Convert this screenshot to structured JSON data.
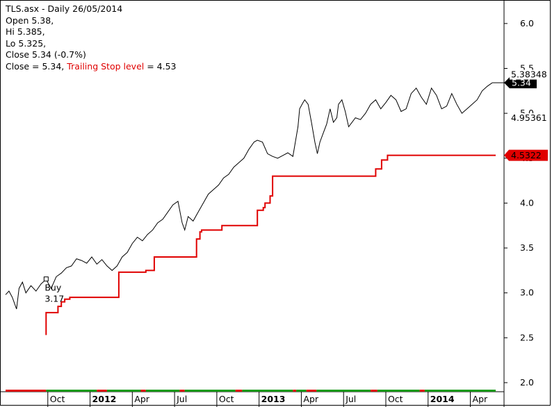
{
  "header": {
    "title": "TLS.asx - Daily 26/05/2014",
    "open": "Open 5.38,",
    "hi": "Hi 5.385,",
    "lo": "Lo 5.325,",
    "close": "Close 5.34 (-0.7%)",
    "close2": "Close = 5.34,",
    "stop_label": "Trailing Stop level",
    "stop_value": "= 4.53"
  },
  "right_labels": {
    "price_top": "5.38348",
    "price_mid": "4.95361",
    "last_price": "5.34",
    "stop_tag": "4.5322"
  },
  "buy_marker": {
    "label": "Buy",
    "price": "3.17"
  },
  "colors": {
    "price_line": "#000000",
    "stop_line": "#e00000",
    "bar_green": "#1a9a1a",
    "bar_red": "#e01010"
  },
  "chart_data": {
    "type": "line",
    "title": "TLS.asx - Daily 26/05/2014",
    "ylim": [
      1.93,
      6.2
    ],
    "yticks": [
      2.0,
      2.5,
      3.0,
      3.5,
      4.0,
      4.5,
      5.0,
      5.5,
      6.0
    ],
    "ytick_labels": [
      "2.0",
      "2.5",
      "3.0",
      "3.5",
      "4.0",
      "4.5",
      "5.0",
      "5.5",
      "6.0"
    ],
    "xlim": [
      2011.5,
      2014.4
    ],
    "xticks": [
      {
        "label": "Oct",
        "x": 2011.75,
        "bold": false
      },
      {
        "label": "2012",
        "x": 2012.0,
        "bold": true
      },
      {
        "label": "Apr",
        "x": 2012.25,
        "bold": false
      },
      {
        "label": "Jul",
        "x": 2012.5,
        "bold": false
      },
      {
        "label": "Oct",
        "x": 2012.75,
        "bold": false
      },
      {
        "label": "2013",
        "x": 2013.0,
        "bold": true
      },
      {
        "label": "Apr",
        "x": 2013.25,
        "bold": false
      },
      {
        "label": "Jul",
        "x": 2013.5,
        "bold": false
      },
      {
        "label": "Oct",
        "x": 2013.75,
        "bold": false
      },
      {
        "label": "2014",
        "x": 2014.0,
        "bold": true
      },
      {
        "label": "Apr",
        "x": 2014.25,
        "bold": false
      }
    ],
    "series": [
      {
        "name": "Close",
        "x": [
          2011.5,
          2011.52,
          2011.54,
          2011.565,
          2011.58,
          2011.6,
          2011.62,
          2011.65,
          2011.68,
          2011.71,
          2011.74,
          2011.77,
          2011.8,
          2011.83,
          2011.86,
          2011.89,
          2011.92,
          2011.95,
          2011.98,
          2012.01,
          2012.04,
          2012.07,
          2012.1,
          2012.13,
          2012.16,
          2012.19,
          2012.22,
          2012.25,
          2012.28,
          2012.31,
          2012.34,
          2012.37,
          2012.4,
          2012.43,
          2012.46,
          2012.49,
          2012.52,
          2012.545,
          2012.56,
          2012.58,
          2012.61,
          2012.64,
          2012.67,
          2012.7,
          2012.73,
          2012.76,
          2012.79,
          2012.82,
          2012.85,
          2012.88,
          2012.91,
          2012.94,
          2012.97,
          2012.99,
          2013.02,
          2013.05,
          2013.08,
          2013.11,
          2013.14,
          2013.17,
          2013.2,
          2013.23,
          2013.24,
          2013.26,
          2013.27,
          2013.29,
          2013.31,
          2013.33,
          2013.345,
          2013.36,
          2013.38,
          2013.4,
          2013.42,
          2013.44,
          2013.46,
          2013.47,
          2013.49,
          2013.51,
          2013.53,
          2013.55,
          2013.57,
          2013.6,
          2013.63,
          2013.66,
          2013.69,
          2013.72,
          2013.75,
          2013.78,
          2013.81,
          2013.84,
          2013.87,
          2013.9,
          2013.93,
          2013.96,
          2013.99,
          2014.02,
          2014.05,
          2014.08,
          2014.11,
          2014.14,
          2014.17,
          2014.2,
          2014.23,
          2014.26,
          2014.29,
          2014.32,
          2014.35,
          2014.38
        ],
        "y": [
          2.98,
          3.02,
          2.95,
          2.82,
          3.05,
          3.12,
          3.0,
          3.08,
          3.02,
          3.1,
          3.15,
          3.05,
          3.18,
          3.22,
          3.28,
          3.3,
          3.38,
          3.36,
          3.33,
          3.4,
          3.32,
          3.37,
          3.3,
          3.25,
          3.3,
          3.4,
          3.45,
          3.55,
          3.62,
          3.58,
          3.65,
          3.7,
          3.78,
          3.82,
          3.9,
          3.98,
          4.02,
          3.78,
          3.7,
          3.85,
          3.8,
          3.9,
          4.0,
          4.1,
          4.15,
          4.2,
          4.28,
          4.32,
          4.4,
          4.45,
          4.5,
          4.6,
          4.68,
          4.7,
          4.68,
          4.55,
          4.52,
          4.5,
          4.53,
          4.56,
          4.52,
          4.85,
          5.05,
          5.12,
          5.15,
          5.1,
          4.9,
          4.68,
          4.55,
          4.68,
          4.78,
          4.88,
          5.05,
          4.9,
          4.95,
          5.1,
          5.15,
          5.02,
          4.85,
          4.9,
          4.95,
          4.93,
          5.0,
          5.1,
          5.15,
          5.05,
          5.12,
          5.2,
          5.15,
          5.02,
          5.05,
          5.22,
          5.28,
          5.18,
          5.1,
          5.28,
          5.2,
          5.05,
          5.08,
          5.22,
          5.1,
          5.0,
          5.05,
          5.1,
          5.15,
          5.25,
          5.3,
          5.34
        ]
      },
      {
        "name": "Trailing Stop level",
        "x": [
          2011.74,
          2011.74,
          2011.765,
          2011.765,
          2011.81,
          2011.81,
          2011.83,
          2011.83,
          2011.85,
          2011.85,
          2011.88,
          2011.88,
          2012.17,
          2012.17,
          2012.33,
          2012.33,
          2012.38,
          2012.38,
          2012.63,
          2012.63,
          2012.65,
          2012.65,
          2012.66,
          2012.66,
          2012.67,
          2012.67,
          2012.78,
          2012.78,
          2012.95,
          2012.95,
          2012.99,
          2012.99,
          2013.025,
          2013.025,
          2013.035,
          2013.035,
          2013.065,
          2013.065,
          2013.08,
          2013.08,
          2013.22,
          2013.22,
          2013.25,
          2013.25,
          2013.28,
          2013.28,
          2013.69,
          2013.69,
          2013.725,
          2013.725,
          2013.76,
          2013.76,
          2014.4
        ],
        "y": [
          2.53,
          2.78,
          2.78,
          2.78,
          2.78,
          2.85,
          2.85,
          2.9,
          2.9,
          2.93,
          2.93,
          2.95,
          2.95,
          3.23,
          3.23,
          3.25,
          3.25,
          3.4,
          3.4,
          3.6,
          3.6,
          3.68,
          3.68,
          3.7,
          3.7,
          3.7,
          3.7,
          3.75,
          3.75,
          3.75,
          3.75,
          3.92,
          3.92,
          3.95,
          3.95,
          4.0,
          4.0,
          4.08,
          4.08,
          4.3,
          4.3,
          4.3,
          4.3,
          4.3,
          4.3,
          4.3,
          4.3,
          4.38,
          4.38,
          4.48,
          4.48,
          4.5322,
          4.5322
        ]
      }
    ],
    "buy_signal": {
      "x": 2011.74,
      "y": 3.17
    },
    "bottom_strip": {
      "segments": [
        {
          "from": 2011.5,
          "to": 2011.74,
          "color": "red"
        },
        {
          "from": 2011.74,
          "to": 2012.04,
          "color": "green"
        },
        {
          "from": 2012.04,
          "to": 2012.1,
          "color": "red"
        },
        {
          "from": 2012.1,
          "to": 2012.3,
          "color": "green"
        },
        {
          "from": 2012.3,
          "to": 2012.33,
          "color": "red"
        },
        {
          "from": 2012.33,
          "to": 2012.53,
          "color": "green"
        },
        {
          "from": 2012.53,
          "to": 2012.56,
          "color": "red"
        },
        {
          "from": 2012.56,
          "to": 2012.86,
          "color": "green"
        },
        {
          "from": 2012.86,
          "to": 2012.9,
          "color": "red"
        },
        {
          "from": 2012.9,
          "to": 2013.2,
          "color": "green"
        },
        {
          "from": 2013.2,
          "to": 2013.22,
          "color": "red"
        },
        {
          "from": 2013.22,
          "to": 2013.28,
          "color": "green"
        },
        {
          "from": 2013.28,
          "to": 2013.34,
          "color": "red"
        },
        {
          "from": 2013.34,
          "to": 2013.66,
          "color": "green"
        },
        {
          "from": 2013.66,
          "to": 2013.7,
          "color": "red"
        },
        {
          "from": 2013.7,
          "to": 2013.95,
          "color": "green"
        },
        {
          "from": 2013.95,
          "to": 2013.98,
          "color": "red"
        },
        {
          "from": 2013.98,
          "to": 2014.4,
          "color": "green"
        }
      ]
    },
    "grid": false,
    "legend": "none"
  }
}
